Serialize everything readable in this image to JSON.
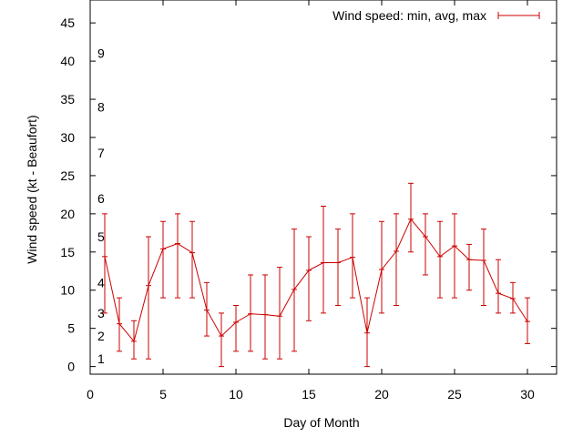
{
  "chart_data": {
    "type": "line",
    "xlabel": "Day of Month",
    "ylabel": "Wind speed (kt - Beaufort)",
    "xlim": [
      0,
      32
    ],
    "ylim": [
      -1,
      48
    ],
    "xticks": [
      0,
      5,
      10,
      15,
      20,
      25,
      30
    ],
    "yticks": [
      0,
      5,
      10,
      15,
      20,
      25,
      30,
      35,
      40,
      45
    ],
    "beaufort_labels": [
      {
        "label": "1",
        "y": 1
      },
      {
        "label": "2",
        "y": 4
      },
      {
        "label": "3",
        "y": 7
      },
      {
        "label": "4",
        "y": 11
      },
      {
        "label": "5",
        "y": 17
      },
      {
        "label": "6",
        "y": 22
      },
      {
        "label": "7",
        "y": 28
      },
      {
        "label": "8",
        "y": 34
      },
      {
        "label": "9",
        "y": 41
      }
    ],
    "grid": false,
    "legend_position": "top-right",
    "series": [
      {
        "name": "Wind speed: min, avg, max",
        "color": "#cc0000",
        "x": [
          1,
          2,
          3,
          4,
          5,
          6,
          7,
          8,
          9,
          10,
          11,
          12,
          13,
          14,
          15,
          16,
          17,
          18,
          19,
          20,
          21,
          22,
          23,
          24,
          25,
          26,
          27,
          28,
          29,
          30
        ],
        "avg": [
          14.4,
          5.6,
          3.3,
          10.6,
          15.4,
          16.1,
          14.9,
          7.4,
          4.0,
          5.8,
          6.9,
          6.8,
          6.6,
          10.1,
          12.6,
          13.6,
          13.6,
          14.3,
          4.4,
          12.7,
          15.1,
          19.3,
          17.0,
          14.4,
          15.8,
          14.0,
          13.9,
          9.6,
          8.9,
          5.9
        ],
        "min": [
          7,
          2,
          1,
          1,
          9,
          9,
          9,
          4,
          0,
          2,
          2,
          1,
          1,
          2,
          6,
          7,
          8,
          9,
          0,
          7,
          8,
          15,
          12,
          9,
          9,
          10,
          8,
          7,
          7,
          3
        ],
        "max": [
          20,
          9,
          6,
          17,
          19,
          20,
          19,
          11,
          7,
          8,
          12,
          12,
          13,
          18,
          17,
          21,
          18,
          20,
          9,
          19,
          20,
          24,
          20,
          19,
          20,
          16,
          18,
          14,
          11,
          9
        ]
      }
    ]
  }
}
